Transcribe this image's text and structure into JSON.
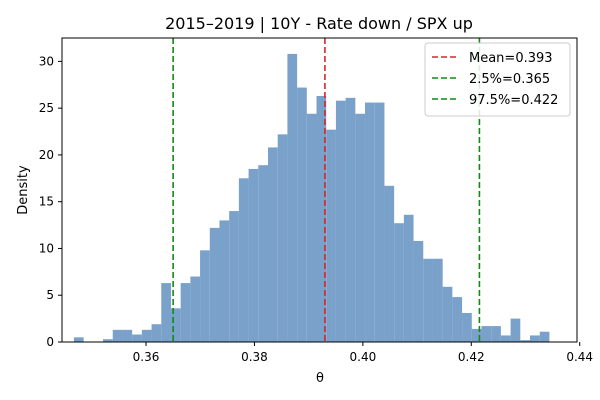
{
  "chart_data": {
    "type": "bar",
    "title": "2015–2019 | 10Y - Rate down / SPX up",
    "xlabel": "θ",
    "ylabel": "Density",
    "xlim": [
      0.3445,
      0.4395
    ],
    "ylim": [
      0,
      32.5
    ],
    "xticks": [
      0.36,
      0.38,
      0.4,
      0.42,
      0.44
    ],
    "xtick_labels": [
      "0.36",
      "0.38",
      "0.40",
      "0.42",
      "0.44"
    ],
    "yticks": [
      0,
      5,
      10,
      15,
      20,
      25,
      30
    ],
    "ytick_labels": [
      "0",
      "5",
      "10",
      "15",
      "20",
      "25",
      "30"
    ],
    "bin_start": 0.3467,
    "bin_width": 0.00179,
    "densities": [
      0.5,
      0,
      0,
      0.3,
      1.3,
      1.3,
      0.8,
      1.3,
      1.9,
      6.3,
      3.6,
      6.3,
      7.0,
      9.8,
      12.2,
      13.0,
      14.0,
      17.5,
      18.5,
      18.9,
      20.8,
      22.2,
      30.8,
      27.2,
      24.4,
      26.3,
      22.7,
      25.8,
      26.1,
      24.4,
      25.6,
      25.6,
      16.7,
      12.7,
      13.6,
      10.8,
      8.9,
      8.9,
      5.9,
      4.8,
      3.1,
      1.4,
      1.7,
      1.7,
      0.7,
      2.5,
      0.2,
      0.7,
      1.1
    ],
    "bar_color": "#6f9ac6",
    "vlines": [
      {
        "label": "Mean=0.393",
        "x": 0.393,
        "color": "#d62728"
      },
      {
        "label": "2.5%=0.365",
        "x": 0.365,
        "color": "#138a13"
      },
      {
        "label": "97.5%=0.422",
        "x": 0.4215,
        "color": "#138a13"
      }
    ],
    "legend_position": "top-right",
    "grid": false
  }
}
